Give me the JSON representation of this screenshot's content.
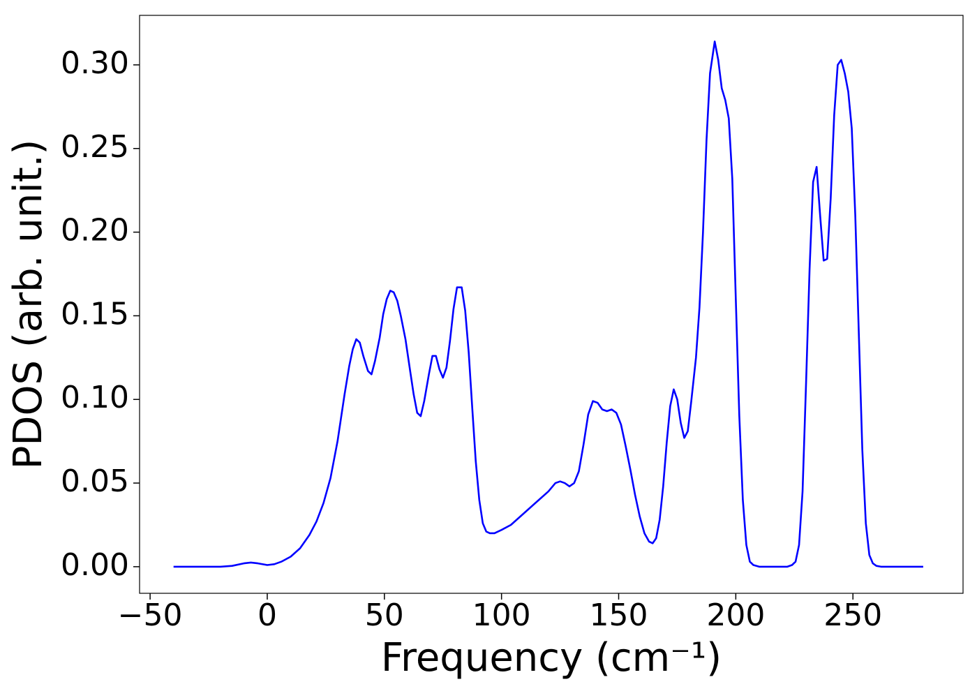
{
  "chart_data": {
    "type": "line",
    "xlabel": "Frequency (cm⁻¹)",
    "ylabel": "PDOS (arb. unit.)",
    "xlim": [
      -54.5,
      297
    ],
    "ylim": [
      -0.0159,
      0.3296
    ],
    "xticks": [
      {
        "value": -50,
        "label": "−50"
      },
      0,
      50,
      100,
      150,
      200,
      250
    ],
    "yticks": [
      {
        "value": 0,
        "label": "0.00"
      },
      {
        "value": 0.05,
        "label": "0.05"
      },
      {
        "value": 0.1,
        "label": "0.10"
      },
      {
        "value": 0.15,
        "label": "0.15"
      },
      {
        "value": 0.2,
        "label": "0.20"
      },
      {
        "value": 0.25,
        "label": "0.25"
      },
      {
        "value": 0.3,
        "label": "0.30"
      }
    ],
    "grid": false,
    "series": [
      {
        "color": "#0000ff",
        "x": [
          -40,
          -20,
          -15,
          -10,
          -7,
          -4,
          0,
          3,
          6,
          10,
          14,
          18,
          21,
          24,
          27,
          30,
          33,
          35,
          36.5,
          38,
          39.5,
          41,
          43,
          44.5,
          46,
          48,
          49.5,
          51,
          52.5,
          54,
          55.5,
          57,
          59,
          61,
          62.5,
          64,
          65.5,
          67,
          69,
          70.5,
          72,
          73.5,
          75,
          76.5,
          78,
          79.5,
          81,
          83,
          84.5,
          86,
          87.5,
          89,
          90.5,
          92,
          93.5,
          95,
          97,
          100,
          104,
          108,
          112,
          116,
          120,
          123,
          125,
          127,
          129,
          131,
          133,
          135,
          137,
          139,
          141,
          143,
          145,
          147,
          149,
          151,
          153,
          155,
          157,
          159,
          161,
          163,
          164.5,
          166,
          167.5,
          169,
          170.5,
          172,
          173.5,
          175,
          176.5,
          178,
          179.5,
          181,
          183,
          184.5,
          186,
          187.5,
          189,
          191,
          192.5,
          194,
          195.5,
          197,
          198.5,
          200,
          201.5,
          203,
          204.5,
          206,
          207.5,
          210,
          222,
          224,
          225.5,
          227,
          228.5,
          230,
          231.5,
          233,
          234.5,
          236,
          237.5,
          239,
          240.5,
          242,
          243.5,
          245,
          246.5,
          248,
          249.5,
          251,
          252.5,
          254,
          255.5,
          257,
          258.5,
          260,
          262,
          280
        ],
        "values": [
          0,
          0,
          0.0005,
          0.002,
          0.0025,
          0.002,
          0.001,
          0.0015,
          0.003,
          0.006,
          0.011,
          0.019,
          0.027,
          0.038,
          0.053,
          0.075,
          0.103,
          0.12,
          0.13,
          0.136,
          0.134,
          0.126,
          0.117,
          0.115,
          0.123,
          0.137,
          0.151,
          0.16,
          0.165,
          0.164,
          0.159,
          0.15,
          0.136,
          0.117,
          0.103,
          0.092,
          0.09,
          0.099,
          0.115,
          0.126,
          0.126,
          0.118,
          0.113,
          0.119,
          0.135,
          0.154,
          0.167,
          0.167,
          0.153,
          0.128,
          0.095,
          0.063,
          0.04,
          0.026,
          0.021,
          0.02,
          0.02,
          0.022,
          0.025,
          0.03,
          0.035,
          0.04,
          0.045,
          0.05,
          0.051,
          0.05,
          0.048,
          0.05,
          0.057,
          0.073,
          0.091,
          0.099,
          0.098,
          0.094,
          0.093,
          0.094,
          0.092,
          0.085,
          0.072,
          0.058,
          0.043,
          0.03,
          0.02,
          0.015,
          0.014,
          0.017,
          0.028,
          0.048,
          0.074,
          0.096,
          0.106,
          0.1,
          0.086,
          0.077,
          0.081,
          0.099,
          0.125,
          0.155,
          0.2,
          0.255,
          0.295,
          0.314,
          0.303,
          0.286,
          0.279,
          0.268,
          0.232,
          0.16,
          0.09,
          0.04,
          0.013,
          0.003,
          0.001,
          0,
          0,
          0.001,
          0.003,
          0.013,
          0.045,
          0.11,
          0.178,
          0.23,
          0.239,
          0.21,
          0.183,
          0.184,
          0.22,
          0.27,
          0.3,
          0.303,
          0.295,
          0.284,
          0.262,
          0.21,
          0.14,
          0.07,
          0.026,
          0.007,
          0.002,
          0.0005,
          0,
          0
        ]
      }
    ]
  }
}
